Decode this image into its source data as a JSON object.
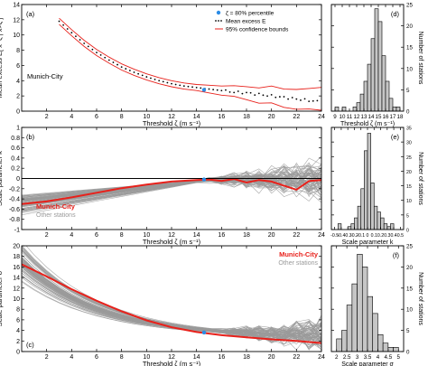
{
  "colors": {
    "red": "#e8211b",
    "blue": "#2b8ce6",
    "gray": "#9a9a9a",
    "bar_fill": "#c6c6c6",
    "frame": "#000000"
  },
  "chart_data": [
    {
      "panel": "(a)",
      "type": "line",
      "ylabel": "Mean excess E[ x−ζ | x>ζ ]",
      "xlabel": "Threshold ζ (m s⁻¹)",
      "station_label": "Munich-City",
      "xlim": [
        0,
        24
      ],
      "ylim": [
        0,
        14
      ],
      "xticks": [
        2,
        4,
        6,
        8,
        10,
        12,
        14,
        16,
        18,
        20,
        22,
        24
      ],
      "yticks": [
        0,
        2,
        4,
        6,
        8,
        10,
        12,
        14
      ],
      "legend": {
        "position": "top-right",
        "items": [
          "ζ = 80% percentile",
          "Mean excess E",
          "95% confidence bounds"
        ]
      },
      "percentile_point": {
        "x": 14.6,
        "y": 2.8
      },
      "series": [
        {
          "name": "Mean excess E",
          "style": "dots",
          "x": [
            3,
            4,
            5,
            6,
            7,
            8,
            9,
            10,
            11,
            12,
            13,
            14,
            15,
            16,
            17,
            18,
            19,
            20,
            21,
            22,
            23,
            24
          ],
          "y": [
            11.8,
            10.3,
            8.9,
            7.7,
            6.7,
            5.8,
            5.1,
            4.5,
            4.0,
            3.6,
            3.3,
            3.1,
            2.9,
            2.7,
            2.5,
            2.4,
            2.2,
            2.0,
            1.8,
            1.6,
            1.4,
            1.2
          ]
        },
        {
          "name": "95% confidence bounds (upper)",
          "style": "line",
          "x": [
            3,
            4,
            5,
            6,
            7,
            8,
            9,
            10,
            11,
            12,
            13,
            14,
            15,
            16,
            17,
            18,
            19,
            20,
            21,
            22,
            23,
            24
          ],
          "y": [
            12.2,
            10.7,
            9.3,
            8.1,
            7.1,
            6.2,
            5.5,
            4.9,
            4.4,
            4.0,
            3.7,
            3.5,
            3.4,
            3.3,
            3.2,
            3.2,
            3.2,
            3.1,
            3.0,
            2.9,
            2.8,
            3.3
          ]
        },
        {
          "name": "95% confidence bounds (lower)",
          "style": "line",
          "x": [
            3,
            4,
            5,
            6,
            7,
            8,
            9,
            10,
            11,
            12,
            13,
            14,
            15,
            16,
            17,
            18,
            19,
            20,
            21,
            22,
            23,
            24
          ],
          "y": [
            11.4,
            9.9,
            8.5,
            7.3,
            6.3,
            5.4,
            4.7,
            4.1,
            3.6,
            3.2,
            2.9,
            2.7,
            2.4,
            2.1,
            1.8,
            1.5,
            1.2,
            0.9,
            0.6,
            0.3,
            0.1,
            0.3
          ]
        }
      ]
    },
    {
      "panel": "(b)",
      "type": "line",
      "ylabel": "Scale parameter k",
      "xlabel": "Threshold ζ (m s⁻¹)",
      "xlim": [
        0,
        24
      ],
      "ylim": [
        -1,
        1
      ],
      "xticks": [
        2,
        4,
        6,
        8,
        10,
        12,
        14,
        16,
        18,
        20,
        22,
        24
      ],
      "yticks": [
        -1,
        -0.8,
        -0.6,
        -0.4,
        -0.2,
        0,
        0.2,
        0.4,
        0.6,
        0.8,
        1
      ],
      "legend_labels": [
        "Munich-City",
        "Other stations"
      ],
      "legend_position": "bottom-left",
      "reference_lines": [
        0
      ],
      "percentile_point": {
        "x": 14.6,
        "y": -0.02
      },
      "series": [
        {
          "name": "Munich-City",
          "x": [
            0,
            2,
            4,
            6,
            8,
            10,
            12,
            14,
            15,
            16,
            17,
            18,
            19,
            20,
            21,
            22,
            23,
            24
          ],
          "y": [
            -0.5,
            -0.45,
            -0.37,
            -0.28,
            -0.19,
            -0.12,
            -0.06,
            -0.03,
            -0.02,
            -0.05,
            -0.01,
            -0.08,
            -0.03,
            -0.06,
            -0.14,
            -0.22,
            -0.05,
            -0.03
          ]
        }
      ]
    },
    {
      "panel": "(c)",
      "type": "line",
      "ylabel": "Scale parameter σ",
      "xlabel": "Threshold ζ (m s⁻¹)",
      "xlim": [
        0,
        24
      ],
      "ylim": [
        0,
        20
      ],
      "xticks": [
        2,
        4,
        6,
        8,
        10,
        12,
        14,
        16,
        18,
        20,
        22,
        24
      ],
      "yticks": [
        0,
        2,
        4,
        6,
        8,
        10,
        12,
        14,
        16,
        18,
        20
      ],
      "legend_labels": [
        "Munich-City",
        "Other stations"
      ],
      "legend_position": "top-right",
      "percentile_point": {
        "x": 14.6,
        "y": 3.6
      },
      "series": [
        {
          "name": "Munich-City",
          "x": [
            0,
            2,
            4,
            6,
            8,
            10,
            12,
            14,
            16,
            18,
            20,
            22,
            24
          ],
          "y": [
            16.5,
            14.2,
            11.8,
            9.6,
            7.6,
            5.9,
            4.6,
            3.7,
            3.1,
            2.7,
            2.3,
            2.0,
            1.6
          ]
        }
      ]
    },
    {
      "panel": "(d)",
      "type": "bar",
      "ylabel": "Number of stations",
      "xlabel": "Threshold ζ (m s⁻¹)",
      "xlim": [
        8.5,
        18.5
      ],
      "ylim": [
        0,
        25
      ],
      "xticks": [
        9,
        10,
        11,
        12,
        13,
        14,
        15,
        16,
        17,
        18
      ],
      "yticks": [
        0,
        5,
        10,
        15,
        20,
        25
      ],
      "bin_width": 0.5,
      "bins": [
        9,
        9.5,
        10,
        10.5,
        11,
        11.5,
        12,
        12.5,
        13,
        13.5,
        14,
        14.5,
        15,
        15.5,
        16,
        16.5,
        17,
        17.5
      ],
      "values": [
        1,
        0,
        1,
        0,
        0,
        1,
        2,
        4,
        7,
        11,
        17,
        24,
        21,
        13,
        7,
        3,
        1,
        1
      ]
    },
    {
      "panel": "(e)",
      "type": "bar",
      "ylabel": "Number of stations",
      "xlabel": "Scale parameter k",
      "xlim": [
        -0.55,
        0.55
      ],
      "ylim": [
        0,
        35
      ],
      "xticks": [
        -0.5,
        -0.4,
        -0.3,
        -0.2,
        -0.1,
        0,
        0.1,
        0.2,
        0.3,
        0.4,
        0.5
      ],
      "xtick_labels": [
        "-0.5",
        "-0.4",
        "-0.3",
        "-0.2",
        "-0.1",
        "0",
        "0.1",
        "0.2",
        "0.3",
        "0.4",
        "0.5"
      ],
      "yticks": [
        0,
        5,
        10,
        15,
        20,
        25,
        30,
        35
      ],
      "bin_width": 0.05,
      "bins": [
        -0.45,
        -0.4,
        -0.35,
        -0.3,
        -0.25,
        -0.2,
        -0.15,
        -0.1,
        -0.05,
        0,
        0.05,
        0.1,
        0.15,
        0.2,
        0.25,
        0.3,
        0.35
      ],
      "values": [
        2,
        0,
        0,
        1,
        2,
        4,
        8,
        14,
        27,
        33,
        16,
        8,
        6,
        4,
        2,
        1,
        2
      ]
    },
    {
      "panel": "(f)",
      "type": "bar",
      "ylabel": "Number of stations",
      "xlabel": "Scale parameter σ",
      "xlim": [
        1.75,
        5.25
      ],
      "ylim": [
        0,
        25
      ],
      "xticks": [
        2,
        2.5,
        3,
        3.5,
        4,
        4.5,
        5
      ],
      "yticks": [
        0,
        5,
        10,
        15,
        20,
        25
      ],
      "bin_width": 0.25,
      "bins": [
        2,
        2.25,
        2.5,
        2.75,
        3,
        3.25,
        3.5,
        3.75,
        4,
        4.25,
        4.5,
        4.75
      ],
      "values": [
        3,
        5,
        11,
        16,
        23,
        20,
        13,
        9,
        4,
        2,
        1,
        1
      ]
    }
  ]
}
